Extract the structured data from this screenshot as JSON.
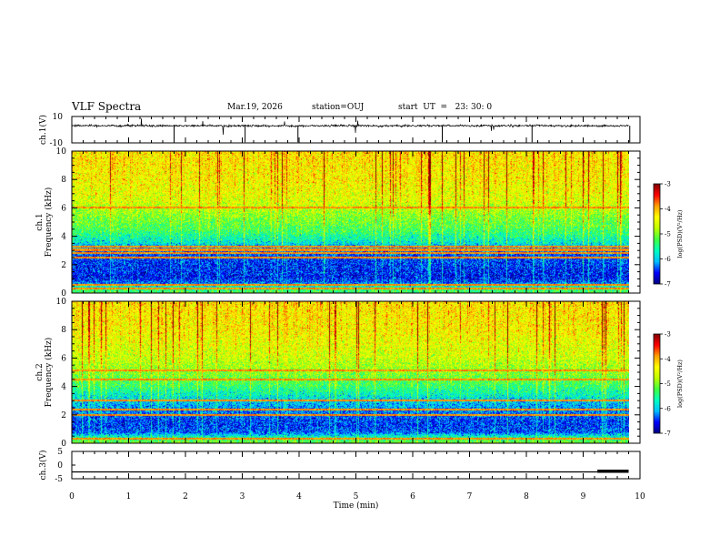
{
  "header": {
    "title": "VLF Spectra",
    "date": "Mar.19, 2026",
    "station": "station=OUJ",
    "start_ut": "start  UT  =   23: 30: 0"
  },
  "colors": {
    "background": "#ffffff",
    "waveform": "#000000",
    "colormap": [
      "#00007f",
      "#0000ff",
      "#00bfff",
      "#00ffbf",
      "#40ff40",
      "#bfff00",
      "#ffff00",
      "#ff9f00",
      "#ff0000",
      "#7f0000"
    ]
  },
  "chart_data": [
    {
      "type": "line",
      "id": "ch1-waveform",
      "ylabel": "ch.1(V)",
      "ylim": [
        -10,
        10
      ],
      "yticks": [
        "10",
        "-10"
      ],
      "baseline_v": 3,
      "data_extent_min": 9.8
    },
    {
      "type": "heatmap",
      "id": "ch1-spectrogram",
      "ylabel_top": "ch.1",
      "ylabel": "Frequency  (kHz)",
      "ylim": [
        0,
        10
      ],
      "yticks": [
        "0",
        "2",
        "4",
        "6",
        "8",
        "10"
      ],
      "data_extent_min": 9.8,
      "colorbar": {
        "label": "log(PSD)(V²/Hz)",
        "range": [
          -7,
          -3
        ],
        "ticks": [
          "-3",
          "-4",
          "-5",
          "-6",
          "-7"
        ]
      },
      "profile_khz": [
        0,
        0.4,
        0.8,
        1.2,
        2.0,
        3.0,
        3.6,
        4.5,
        5.5,
        6.5,
        8.0,
        10
      ],
      "profile_log_psd": [
        -5.2,
        -5.6,
        -6.4,
        -6.6,
        -6.5,
        -6.4,
        -5.8,
        -5.3,
        -5.0,
        -4.6,
        -4.4,
        -4.3
      ],
      "bright_lines_khz": [
        2.5,
        2.8,
        3.0,
        3.1,
        3.3,
        6.0,
        0.3,
        0.6
      ]
    },
    {
      "type": "heatmap",
      "id": "ch2-spectrogram",
      "ylabel_top": "ch.2",
      "ylabel": "Frequency  (kHz)",
      "ylim": [
        0,
        10
      ],
      "yticks": [
        "0",
        "2",
        "4",
        "6",
        "8",
        "10"
      ],
      "data_extent_min": 9.8,
      "colorbar": {
        "label": "log(PSD)(V²/Hz)",
        "range": [
          -7,
          -3
        ],
        "ticks": [
          "-3",
          "-4",
          "-5",
          "-6",
          "-7"
        ]
      },
      "profile_khz": [
        0,
        0.4,
        0.8,
        1.5,
        2.2,
        3.0,
        4.0,
        5.0,
        6.0,
        8.0,
        10
      ],
      "profile_log_psd": [
        -5.0,
        -5.5,
        -6.4,
        -6.5,
        -6.3,
        -6.0,
        -5.4,
        -5.0,
        -4.7,
        -4.4,
        -4.3
      ],
      "bright_lines_khz": [
        2.0,
        2.4,
        3.0,
        4.5,
        5.1,
        0.3
      ]
    },
    {
      "type": "line",
      "id": "ch3-waveform",
      "ylabel": "ch.3(V)",
      "ylim": [
        -5,
        5
      ],
      "yticks": [
        "5",
        "0",
        "-5"
      ],
      "level_v": -2.5,
      "high_level_v": -2.0,
      "high_from_min": 9.25,
      "data_extent_min": 9.8
    }
  ],
  "time_axis": {
    "label": "Time  (min)",
    "xlim": [
      0,
      10
    ],
    "ticks": [
      "0",
      "1",
      "2",
      "3",
      "4",
      "5",
      "6",
      "7",
      "8",
      "9",
      "10"
    ]
  }
}
